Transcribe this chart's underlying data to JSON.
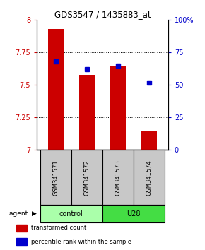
{
  "title": "GDS3547 / 1435883_at",
  "samples": [
    "GSM341571",
    "GSM341572",
    "GSM341573",
    "GSM341574"
  ],
  "transformed_counts": [
    7.93,
    7.58,
    7.65,
    7.15
  ],
  "percentile_ranks": [
    68,
    62,
    65,
    52
  ],
  "ylim_left": [
    7.0,
    8.0
  ],
  "ylim_right": [
    0,
    100
  ],
  "yticks_left": [
    7.0,
    7.25,
    7.5,
    7.75,
    8.0
  ],
  "yticks_right": [
    0,
    25,
    50,
    75,
    100
  ],
  "ytick_labels_left": [
    "7",
    "7.25",
    "7.5",
    "7.75",
    "8"
  ],
  "ytick_labels_right": [
    "0",
    "25",
    "50",
    "75",
    "100%"
  ],
  "groups": [
    {
      "label": "control",
      "indices": [
        0,
        1
      ],
      "color": "#aaffaa"
    },
    {
      "label": "U28",
      "indices": [
        2,
        3
      ],
      "color": "#44dd44"
    }
  ],
  "bar_color": "#cc0000",
  "marker_color": "#0000cc",
  "bar_width": 0.5,
  "background_color": "#ffffff",
  "sample_box_color": "#c8c8c8",
  "legend_items": [
    {
      "color": "#cc0000",
      "label": "transformed count"
    },
    {
      "color": "#0000cc",
      "label": "percentile rank within the sample"
    }
  ]
}
